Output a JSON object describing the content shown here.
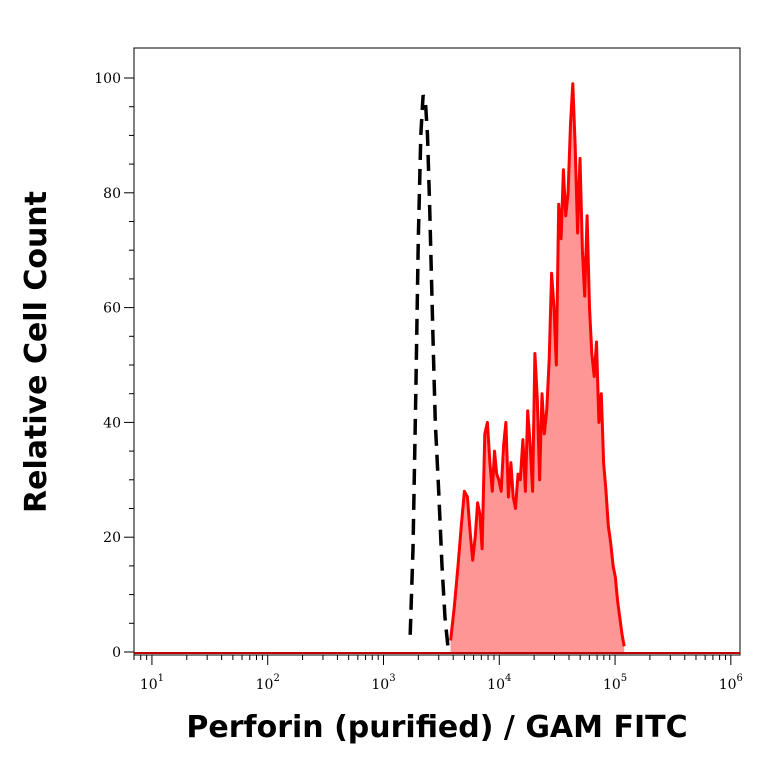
{
  "chart_data": {
    "type": "area",
    "xlabel": "Perforin (purified) / GAM FITC",
    "ylabel": "Relative Cell Count",
    "x_scale": "log",
    "xlim": [
      7,
      1200000
    ],
    "ylim": [
      0,
      100
    ],
    "x_ticks": [
      {
        "base": "10",
        "exp": "1",
        "value": 10
      },
      {
        "base": "10",
        "exp": "2",
        "value": 100
      },
      {
        "base": "10",
        "exp": "3",
        "value": 1000
      },
      {
        "base": "10",
        "exp": "4",
        "value": 10000
      },
      {
        "base": "10",
        "exp": "5",
        "value": 100000
      },
      {
        "base": "10",
        "exp": "6",
        "value": 1000000
      }
    ],
    "y_ticks": [
      "0",
      "20",
      "40",
      "60",
      "80",
      "100"
    ],
    "y_tick_values": [
      0,
      20,
      40,
      60,
      80,
      100
    ],
    "grid": false,
    "series": [
      {
        "style": "dashed-line",
        "color": "#000000",
        "x": [
          1700,
          1800,
          1900,
          2000,
          2100,
          2200,
          2300,
          2400,
          2500,
          2600,
          2700,
          2800,
          3000,
          3200,
          3400,
          3600
        ],
        "values": [
          3,
          18,
          45,
          72,
          90,
          97,
          96,
          90,
          78,
          65,
          52,
          40,
          28,
          15,
          6,
          1
        ]
      },
      {
        "style": "filled-area",
        "color": "#ff0000",
        "fill": "#ff9696",
        "x": [
          3800,
          4100,
          4400,
          4700,
          5000,
          5300,
          5600,
          5900,
          6200,
          6500,
          6800,
          7100,
          7500,
          7900,
          8300,
          8700,
          9100,
          9500,
          9900,
          10400,
          10900,
          11400,
          12000,
          12600,
          13200,
          13800,
          14500,
          15200,
          16000,
          16800,
          17600,
          18500,
          19400,
          20300,
          21300,
          22300,
          23400,
          24500,
          25700,
          27000,
          28300,
          29700,
          31100,
          32600,
          34200,
          35800,
          37500,
          39300,
          41200,
          43200,
          45300,
          47500,
          49800,
          52200,
          54700,
          57300,
          60100,
          63000,
          66000,
          69200,
          72500,
          76000,
          79700,
          83500,
          87500,
          91700,
          96100,
          100700,
          105000,
          110000,
          115000,
          120000
        ],
        "values": [
          2,
          8,
          15,
          22,
          28,
          27,
          21,
          16,
          20,
          26,
          24,
          18,
          38,
          40,
          33,
          28,
          35,
          31,
          30,
          28,
          36,
          40,
          27,
          33,
          27,
          25,
          31,
          30,
          37,
          28,
          42,
          36,
          28,
          52,
          44,
          30,
          45,
          38,
          42,
          51,
          66,
          60,
          50,
          78,
          72,
          84,
          76,
          80,
          92,
          99,
          88,
          73,
          86,
          70,
          62,
          76,
          60,
          52,
          48,
          54,
          40,
          45,
          33,
          28,
          22,
          19,
          15,
          13,
          9,
          6,
          3,
          1
        ]
      }
    ]
  }
}
